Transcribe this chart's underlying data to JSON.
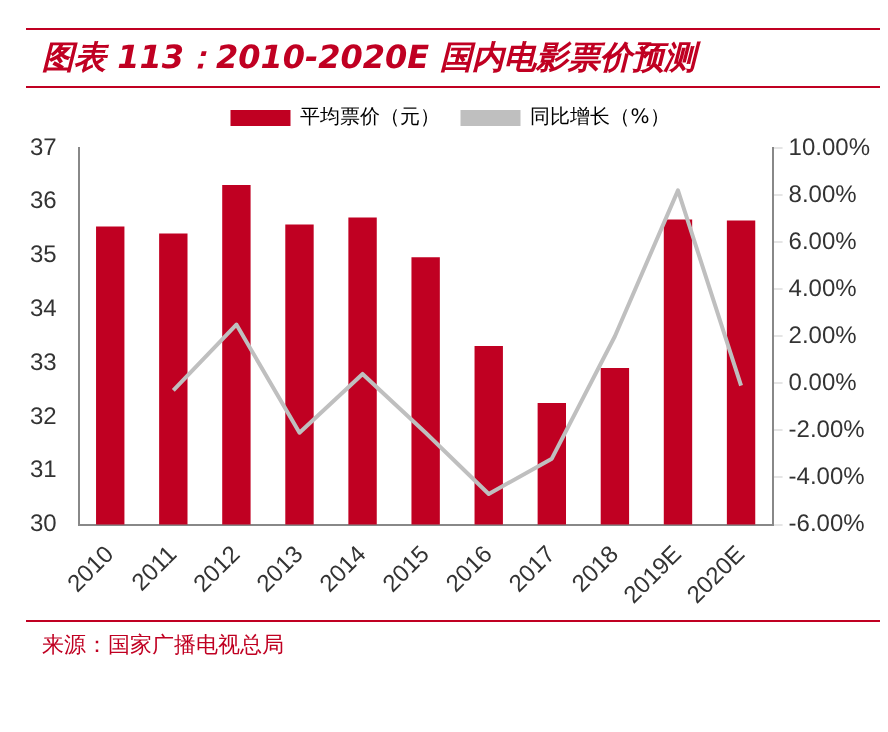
{
  "chart_data": {
    "type": "bar",
    "title": "图表 113：2010-2020E 国内电影票价预测",
    "categories": [
      "2010",
      "2011",
      "2012",
      "2013",
      "2014",
      "2015",
      "2016",
      "2017",
      "2018",
      "2019E",
      "2020E"
    ],
    "series": [
      {
        "name": "平均票价（元）",
        "color": "#c00022",
        "values": [
          35.54,
          35.41,
          36.31,
          35.58,
          35.71,
          34.97,
          33.32,
          32.26,
          32.91,
          35.67,
          35.65
        ]
      },
      {
        "name": "同比增长（%）",
        "type": "line",
        "axis": "y2",
        "color": "#bfbfbf",
        "values": [
          null,
          -0.3,
          2.5,
          -2.1,
          0.4,
          -2.1,
          -4.7,
          -3.2,
          2.0,
          8.2,
          -0.1
        ]
      }
    ],
    "ylim": [
      30,
      37
    ],
    "yticks": [
      30,
      31,
      32,
      33,
      34,
      35,
      36,
      37
    ],
    "y2lim": [
      -6,
      10
    ],
    "y2ticks": [
      {
        "value": -6,
        "label": "-6.00%"
      },
      {
        "value": -4,
        "label": "-4.00%"
      },
      {
        "value": -2,
        "label": "-2.00%"
      },
      {
        "value": 0,
        "label": "0.00%"
      },
      {
        "value": 2,
        "label": "2.00%"
      },
      {
        "value": 4,
        "label": "4.00%"
      },
      {
        "value": 6,
        "label": "6.00%"
      },
      {
        "value": 8,
        "label": "8.00%"
      },
      {
        "value": 10,
        "label": "10.00%"
      }
    ],
    "legend": "top",
    "grid": false,
    "marker": "none",
    "annotations": [
      "来源：国家广播电视总局"
    ]
  }
}
